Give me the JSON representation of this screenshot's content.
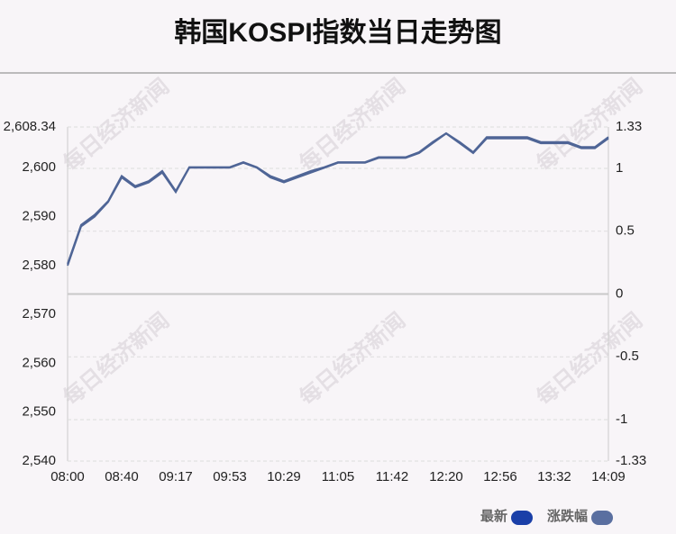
{
  "chart_data": {
    "type": "line",
    "title": "韩国KOSPI指数当日走势图",
    "watermark": "每日经济新闻",
    "categories": [
      "08:00",
      null,
      null,
      null,
      "08:40",
      null,
      null,
      null,
      "09:17",
      null,
      null,
      null,
      "09:53",
      null,
      null,
      null,
      "10:29",
      null,
      null,
      null,
      "11:05",
      null,
      null,
      null,
      "11:42",
      null,
      null,
      null,
      "12:20",
      null,
      null,
      null,
      "12:56",
      null,
      null,
      null,
      "13:32",
      null,
      null,
      null,
      "14:09"
    ],
    "series": [
      {
        "name": "最新",
        "color": "#1a3fa8",
        "line_color": "#4f6596",
        "values": [
          2580,
          2588,
          2590,
          2593,
          2598,
          2596,
          2597,
          2599,
          2595,
          2600,
          2600,
          2600,
          2600,
          2601,
          2600,
          2598,
          2597,
          2598,
          2599,
          2600,
          2601,
          2601,
          2601,
          2602,
          2602,
          2602,
          2603,
          2605,
          2607,
          2605,
          2603,
          2606,
          2606,
          2606,
          2606,
          2605,
          2605,
          2605,
          2604,
          2604,
          2606
        ]
      },
      {
        "name": "涨跌幅",
        "color": "#5a6fa0",
        "line_color": "#4f6596",
        "axis": "y2",
        "values": [
          0.24,
          0.55,
          0.63,
          0.74,
          0.94,
          0.86,
          0.9,
          0.98,
          0.82,
          1.01,
          1.01,
          1.01,
          1.01,
          1.05,
          1.01,
          0.94,
          0.9,
          0.94,
          0.98,
          1.01,
          1.05,
          1.05,
          1.05,
          1.09,
          1.09,
          1.09,
          1.13,
          1.21,
          1.28,
          1.21,
          1.13,
          1.25,
          1.25,
          1.25,
          1.25,
          1.21,
          1.21,
          1.21,
          1.17,
          1.17,
          1.25
        ]
      }
    ],
    "ylim": [
      2540,
      2608.34
    ],
    "yticks": [
      {
        "value": 2540,
        "label": "2,540"
      },
      {
        "value": 2550,
        "label": "2,550"
      },
      {
        "value": 2560,
        "label": "2,560"
      },
      {
        "value": 2570,
        "label": "2,570"
      },
      {
        "value": 2580,
        "label": "2,580"
      },
      {
        "value": 2590,
        "label": "2,590"
      },
      {
        "value": 2600,
        "label": "2,600"
      },
      {
        "value": 2608.34,
        "label": "2,608.34"
      }
    ],
    "y2lim": [
      -1.33,
      1.33
    ],
    "y2ticks": [
      -1.33,
      -1,
      -0.5,
      0,
      0.5,
      1,
      1.33
    ],
    "grid": true,
    "legend": "bottom-right"
  }
}
